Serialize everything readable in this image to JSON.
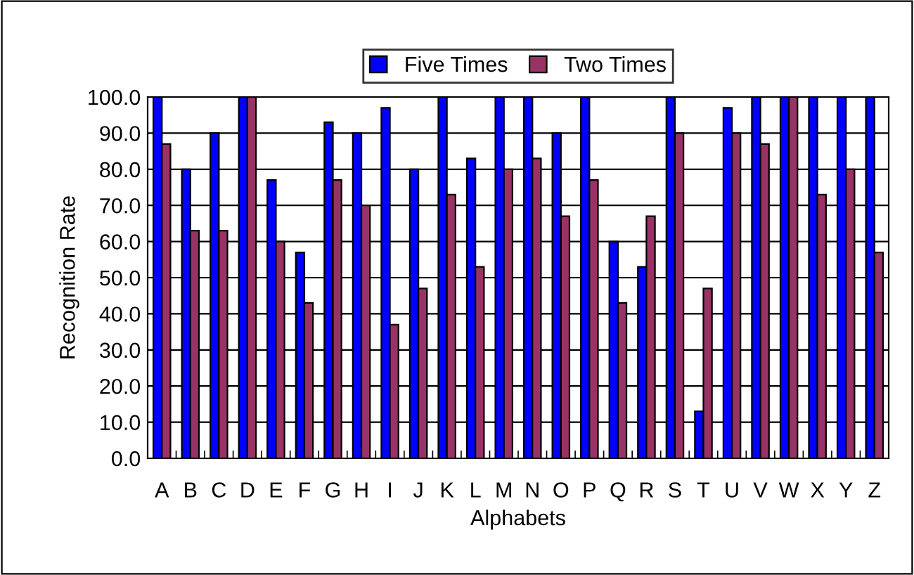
{
  "chart_data": {
    "type": "bar",
    "xlabel": "Alphabets",
    "ylabel": "Recognition Rate",
    "categories": [
      "A",
      "B",
      "C",
      "D",
      "E",
      "F",
      "G",
      "H",
      "I",
      "J",
      "K",
      "L",
      "M",
      "N",
      "O",
      "P",
      "Q",
      "R",
      "S",
      "T",
      "U",
      "V",
      "W",
      "X",
      "Y",
      "Z"
    ],
    "series": [
      {
        "name": "Five Times",
        "color": "#0000ff",
        "values": [
          100,
          80,
          90,
          100,
          77,
          57,
          93,
          90,
          97,
          80,
          100,
          83,
          100,
          100,
          90,
          100,
          60,
          53,
          100,
          13,
          97,
          100,
          100,
          100,
          100,
          100
        ]
      },
      {
        "name": "Two Times",
        "color": "#993366",
        "values": [
          87,
          63,
          63,
          100,
          60,
          43,
          77,
          70,
          37,
          47,
          73,
          53,
          80,
          83,
          67,
          77,
          43,
          67,
          90,
          47,
          90,
          87,
          100,
          73,
          80,
          57
        ]
      }
    ],
    "ylim": [
      0,
      100
    ],
    "yticks": [
      {
        "value": 0,
        "label": "0.0"
      },
      {
        "value": 10,
        "label": "10.0"
      },
      {
        "value": 20,
        "label": "20.0"
      },
      {
        "value": 30,
        "label": "30.0"
      },
      {
        "value": 40,
        "label": "40.0"
      },
      {
        "value": 50,
        "label": "50.0"
      },
      {
        "value": 60,
        "label": "60.0"
      },
      {
        "value": 70,
        "label": "70.0"
      },
      {
        "value": 80,
        "label": "80.0"
      },
      {
        "value": 90,
        "label": "90.0"
      },
      {
        "value": 100,
        "label": "100.0"
      }
    ],
    "grid": "y",
    "legend": "top"
  }
}
